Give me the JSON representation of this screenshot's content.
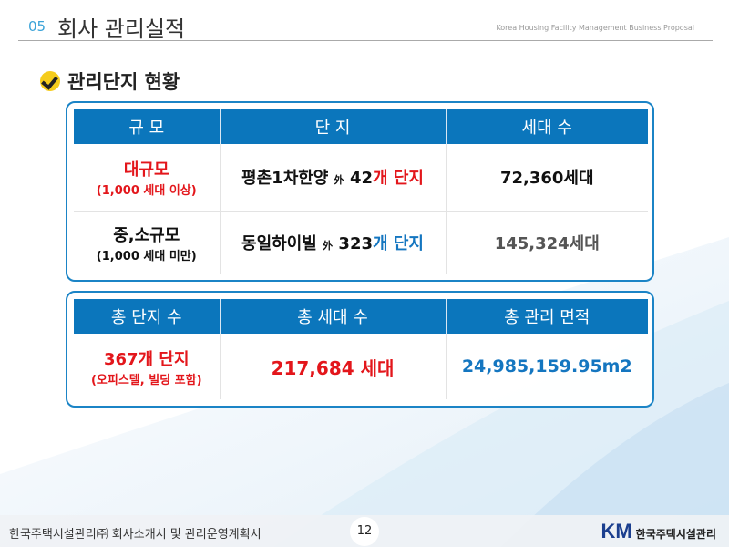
{
  "header": {
    "number": "05",
    "title": "회사 관리실적",
    "subtitle": "Korea Housing Facility Management Business Proposal"
  },
  "section": {
    "icon": "check-circle-icon",
    "title": "관리단지 현황"
  },
  "table1": {
    "headers": [
      "규 모",
      "단 지",
      "세대 수"
    ],
    "rows": [
      {
        "scale": "대규모",
        "scale_note": "(1,000 세대 이상)",
        "complex_name": "평촌1차한양",
        "waei": "外",
        "complex_count": "42",
        "complex_suffix": "개 단지",
        "households": "72,360세대"
      },
      {
        "scale": "중,소규모",
        "scale_note": "(1,000 세대 미만)",
        "complex_name": "동일하이빌",
        "waei": "外",
        "complex_count": "323",
        "complex_suffix": "개 단지",
        "households": "145,324세대"
      }
    ]
  },
  "table2": {
    "headers": [
      "총 단지 수",
      "총 세대 수",
      "총 관리 면적"
    ],
    "total_complexes": "367개 단지",
    "total_note": "(오피스텔, 빌딩 포함)",
    "total_households": "217,684 세대",
    "total_area": "24,985,159.95m2"
  },
  "footer": {
    "text": "한국주택시설관리㈜ 회사소개서 및 관리운영계획서",
    "page": "12",
    "logo_mark": "KM",
    "logo_name": "한국주택시설관리"
  },
  "colors": {
    "accent_blue": "#0b76bc",
    "red": "#e3161b",
    "blue_text": "#1476c0"
  }
}
